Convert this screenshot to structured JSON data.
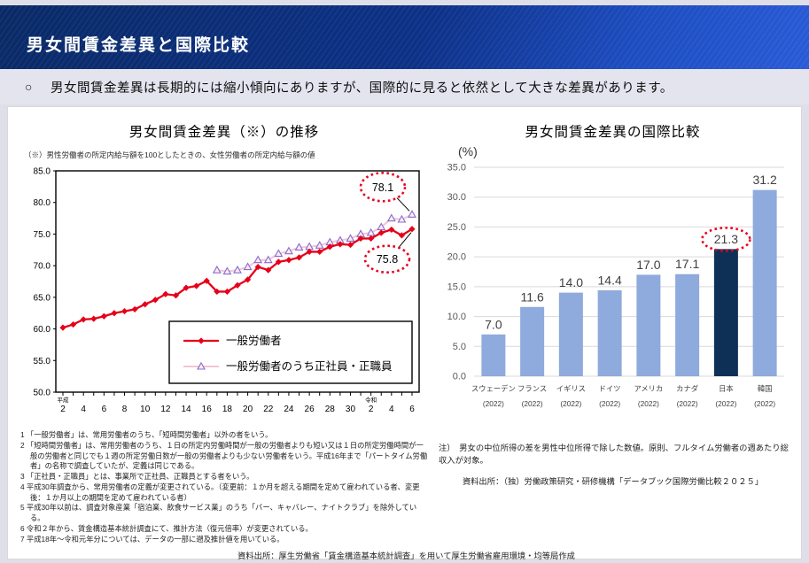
{
  "page": {
    "title": "男女間賃金差異と国際比較",
    "summary_bullet": "○",
    "summary_text": "男女間賃金差異は長期的には縮小傾向にありますが、国際的に見ると依然として大きな差異があります。",
    "footer_source": "資料出所：厚生労働省「賃金構造基本統計調査」を用いて厚生労働省雇用環境・均等局作成"
  },
  "colors": {
    "header_navy": "#0d3187",
    "header_blue": "#1d4dc0",
    "summary_band": "#e4e4ef",
    "accent_red": "#e8001f",
    "line_red": "#e60019",
    "line_pink": "#f2c6d4",
    "triangle_purple": "#8c6bc8",
    "bar_blue": "#8faadc",
    "japan_navy": "#0e3057",
    "grid_grey": "#d9d9d9",
    "axis_text_grey": "#595959"
  },
  "chart_data": [
    {
      "id": "wage-gap-trend",
      "type": "line",
      "title": "男女間賃金差異（※）の推移",
      "subtitle_note": "（※）男性労働者の所定内給与額を100としたときの、女性労働者の所定内給与額の値",
      "ylim": [
        50,
        85
      ],
      "ytick_step": 5,
      "grid": false,
      "legend_position": "inside-lower-right",
      "n_points": 35,
      "x_eras": [
        {
          "index": 0,
          "label": "平成"
        },
        {
          "index": 30,
          "label": "令和"
        }
      ],
      "x_tick_indices": [
        0,
        2,
        4,
        6,
        8,
        10,
        12,
        14,
        16,
        18,
        20,
        22,
        24,
        26,
        28,
        30,
        32,
        34
      ],
      "x_tick_labels": [
        "2",
        "4",
        "6",
        "8",
        "10",
        "12",
        "14",
        "16",
        "18",
        "20",
        "22",
        "24",
        "26",
        "28",
        "30",
        "2",
        "4",
        "6"
      ],
      "series": [
        {
          "name": "一般労働者",
          "marker": "diamond",
          "color": "#e60019",
          "start_index": 0,
          "values": [
            60.2,
            60.7,
            61.5,
            61.6,
            62.0,
            62.5,
            62.8,
            63.1,
            63.9,
            64.6,
            65.5,
            65.3,
            66.5,
            66.8,
            67.6,
            65.9,
            65.9,
            66.9,
            67.8,
            69.8,
            69.3,
            70.6,
            70.9,
            71.3,
            72.2,
            72.2,
            73.0,
            73.4,
            73.3,
            74.3,
            74.3,
            75.2,
            75.7,
            74.8,
            75.8
          ]
        },
        {
          "name": "一般労働者のうち正社員・正職員",
          "marker": "triangle",
          "color": "#f2c6d4",
          "marker_color": "#8c6bc8",
          "start_index": 15,
          "values": [
            69.3,
            69.1,
            69.3,
            69.8,
            70.9,
            70.9,
            71.9,
            72.3,
            72.9,
            73.0,
            73.2,
            73.7,
            74.0,
            74.3,
            75.0,
            75.2,
            76.1,
            77.5,
            77.3,
            78.1
          ]
        }
      ],
      "annotations": [
        {
          "label": "78.1",
          "series": 1,
          "style": "red-dotted-circle"
        },
        {
          "label": "75.8",
          "series": 0,
          "style": "red-dotted-circle"
        }
      ],
      "footnotes": [
        "1 「一般労働者」は、常用労働者のうち、「短時間労働者」以外の者をいう。",
        "2 「短時間労働者」は、常用労働者のうち、１日の所定内労働時間が一般の労働者よりも短い又は１日の所定労働時間が一般の労働者と同じでも１週の所定労働日数が一般の労働者よりも少ない労働者をいう。平成16年まで「パートタイム労働者」の名称で調査していたが、定義は同じである。",
        "3 「正社員・正職員」とは、事業所で正社員、正職員とする者をいう。",
        "4 平成30年調査から、常用労働者の定義が変更されている。（変更前：１か月を超える期間を定めて雇われている者、変更後：１か月以上の期間を定めて雇われている者）",
        "5 平成30年以前は、調査対象産業「宿泊業、飲食サービス業」のうち「バー、キャバレー、ナイトクラブ」を除外している。",
        "6 令和２年から、賃金構造基本統計調査にて、推計方法（復元倍率）が変更されている。",
        "7 平成18年～令和元年分については、データの一部に遡及推計値を用いている。"
      ]
    },
    {
      "id": "international-comparison",
      "type": "bar",
      "title": "男女間賃金差異の国際比較",
      "unit_label": "(%)",
      "categories": [
        "スウェーデン",
        "フランス",
        "イギリス",
        "ドイツ",
        "アメリカ",
        "カナダ",
        "日本",
        "韓国"
      ],
      "category_years": [
        "(2022)",
        "(2022)",
        "(2022)",
        "(2022)",
        "(2022)",
        "(2022)",
        "(2022)",
        "(2022)"
      ],
      "values": [
        7.0,
        11.6,
        14.0,
        14.4,
        17.0,
        17.1,
        21.3,
        31.2
      ],
      "ylim": [
        0,
        35
      ],
      "ytick_step": 5,
      "grid": true,
      "bar_color": "#8faadc",
      "highlight_index": 6,
      "highlight_color": "#0e3057",
      "highlight_style": "red-dotted-circle-on-label",
      "note": "注）　男女の中位所得の差を男性中位所得で除した数値。原則、フルタイム労働者の週あたり総収入が対象。",
      "source": "資料出所：（独）労働政策研究・研修機構「データブック国際労働比較２０２５」"
    }
  ]
}
